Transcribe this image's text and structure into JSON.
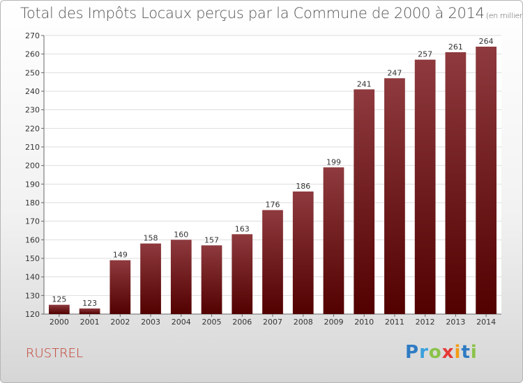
{
  "header": {
    "title": "Total des Impôts Locaux perçus par la Commune de 2000 à 2014",
    "unit": "(en milliers d'€)"
  },
  "footer": {
    "commune": "RUSTREL",
    "brand": "Proxiti"
  },
  "colors": {
    "bar_top": "#8e3a3e",
    "bar_bottom": "#520000",
    "grid": "#dddddd",
    "commune": "#c0392b"
  },
  "chart_data": {
    "type": "bar",
    "title": "Total des Impôts Locaux perçus par la Commune de 2000 à 2014",
    "subtitle": "(en milliers d'€)",
    "xlabel": "",
    "ylabel": "",
    "categories": [
      "2000",
      "2001",
      "2002",
      "2003",
      "2004",
      "2005",
      "2006",
      "2007",
      "2008",
      "2009",
      "2010",
      "2011",
      "2012",
      "2013",
      "2014"
    ],
    "values": [
      125,
      123,
      149,
      158,
      160,
      157,
      163,
      176,
      186,
      199,
      241,
      247,
      257,
      261,
      264
    ],
    "ylim": [
      120,
      270
    ],
    "yticks": [
      120,
      130,
      140,
      150,
      160,
      170,
      180,
      190,
      200,
      210,
      220,
      230,
      240,
      250,
      260,
      270
    ],
    "grid": true,
    "legend": "none"
  }
}
